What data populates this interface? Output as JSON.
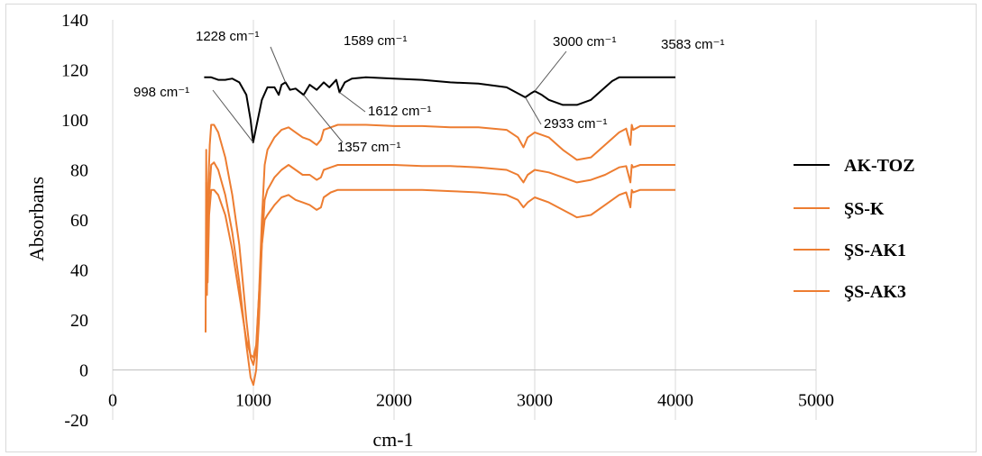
{
  "chart_data": {
    "type": "line",
    "title": "",
    "xlabel": "cm-1",
    "ylabel": "Absorbans",
    "xlim": [
      0,
      5000
    ],
    "ylim": [
      -20,
      140
    ],
    "x_ticks": [
      0,
      1000,
      2000,
      3000,
      4000,
      5000
    ],
    "y_ticks": [
      -20,
      0,
      20,
      40,
      60,
      80,
      100,
      120,
      140
    ],
    "x_tick_labels": [
      "0",
      "1000",
      "2000",
      "3000",
      "4000",
      "5000"
    ],
    "y_tick_labels": [
      "-20",
      "0",
      "20",
      "40",
      "60",
      "80",
      "100",
      "120",
      "140"
    ],
    "grid": "vertical",
    "legend_position": "right",
    "series": [
      {
        "name": "AK-TOZ",
        "color": "#000000",
        "x": [
          650,
          700,
          750,
          800,
          850,
          900,
          950,
          980,
          998,
          1020,
          1060,
          1100,
          1150,
          1180,
          1200,
          1228,
          1260,
          1300,
          1357,
          1400,
          1450,
          1500,
          1540,
          1589,
          1612,
          1650,
          1700,
          1800,
          2000,
          2200,
          2400,
          2600,
          2800,
          2900,
          2933,
          2970,
          3000,
          3050,
          3100,
          3200,
          3300,
          3400,
          3500,
          3550,
          3583,
          3600,
          3700,
          3800,
          4000
        ],
        "y": [
          117,
          117,
          116,
          116,
          116.5,
          115,
          110,
          100,
          91,
          97,
          108,
          113,
          113,
          110,
          114,
          115,
          112,
          112.5,
          110,
          114,
          112,
          115,
          113,
          116,
          111,
          115,
          116.5,
          117,
          116.5,
          116,
          115,
          114.5,
          113,
          110,
          109,
          110.5,
          111.5,
          110,
          108,
          106,
          106,
          108,
          113,
          115.5,
          116.5,
          117,
          117,
          117,
          117
        ]
      },
      {
        "name": "ŞS-K",
        "color": "#ed7d31",
        "x": [
          660,
          665,
          670,
          680,
          690,
          700,
          720,
          750,
          800,
          850,
          900,
          950,
          980,
          1000,
          1020,
          1040,
          1060,
          1080,
          1100,
          1150,
          1200,
          1250,
          1300,
          1350,
          1400,
          1450,
          1480,
          1500,
          1550,
          1600,
          1700,
          1800,
          2000,
          2200,
          2400,
          2600,
          2800,
          2880,
          2920,
          2950,
          3000,
          3100,
          3200,
          3300,
          3400,
          3500,
          3600,
          3650,
          3680,
          3690,
          3700,
          3750,
          3800,
          4000
        ],
        "y": [
          15,
          88,
          30,
          75,
          90,
          98,
          98,
          95,
          85,
          70,
          50,
          20,
          5,
          2,
          8,
          30,
          60,
          82,
          88,
          93,
          96,
          97,
          95,
          93,
          92,
          90,
          92,
          96,
          97,
          98,
          98,
          98,
          97.5,
          97.5,
          97,
          97,
          96,
          93,
          89,
          93,
          95,
          93,
          88,
          84,
          85,
          90,
          95,
          96.5,
          90,
          98,
          96,
          97.5,
          97.5,
          97.5
        ]
      },
      {
        "name": "ŞS-AK1",
        "color": "#ed7d31",
        "x": [
          665,
          675,
          685,
          700,
          720,
          750,
          800,
          850,
          900,
          950,
          980,
          1000,
          1020,
          1040,
          1060,
          1080,
          1100,
          1150,
          1200,
          1250,
          1300,
          1350,
          1400,
          1450,
          1480,
          1500,
          1550,
          1600,
          1700,
          1800,
          2000,
          2200,
          2400,
          2600,
          2800,
          2880,
          2920,
          2950,
          3000,
          3100,
          3200,
          3300,
          3400,
          3500,
          3600,
          3650,
          3680,
          3690,
          3700,
          3750,
          3800,
          4000
        ],
        "y": [
          75,
          40,
          70,
          82,
          83,
          80,
          70,
          55,
          35,
          10,
          -3,
          -6,
          0,
          20,
          50,
          68,
          72,
          77,
          80,
          82,
          80,
          78,
          78,
          76,
          77,
          80,
          81,
          82,
          82,
          82,
          82,
          81.5,
          81.5,
          81,
          80,
          78,
          75,
          78,
          80,
          79,
          77,
          75,
          76,
          78,
          81,
          81.5,
          75,
          82,
          81,
          82,
          82,
          82
        ]
      },
      {
        "name": "ŞS-AK3",
        "color": "#ed7d31",
        "x": [
          665,
          675,
          685,
          700,
          720,
          750,
          800,
          850,
          900,
          950,
          980,
          1000,
          1020,
          1040,
          1060,
          1080,
          1100,
          1150,
          1200,
          1250,
          1300,
          1350,
          1400,
          1450,
          1480,
          1500,
          1550,
          1600,
          1700,
          1800,
          2000,
          2200,
          2400,
          2600,
          2800,
          2880,
          2920,
          2950,
          3000,
          3100,
          3200,
          3300,
          3400,
          3500,
          3600,
          3650,
          3680,
          3690,
          3700,
          3750,
          3800,
          4000
        ],
        "y": [
          68,
          35,
          62,
          72,
          72,
          70,
          62,
          48,
          30,
          12,
          6,
          5,
          10,
          30,
          50,
          60,
          62,
          66,
          69,
          70,
          68,
          67,
          66,
          64,
          65,
          69,
          71,
          72,
          72,
          72,
          72,
          72,
          71.5,
          71,
          70,
          68,
          65,
          67,
          69,
          67,
          64,
          61,
          62,
          66,
          70,
          71,
          65,
          72,
          71,
          72,
          72,
          72
        ]
      }
    ],
    "annotations": [
      {
        "text": "998 cm⁻¹",
        "x": 998,
        "y": 91
      },
      {
        "text": "1228 cm⁻¹",
        "x": 1228,
        "y": 115
      },
      {
        "text": "1357 cm⁻¹",
        "x": 1357,
        "y": 110
      },
      {
        "text": "1589 cm⁻¹",
        "x": 1589,
        "y": 116
      },
      {
        "text": "1612 cm⁻¹",
        "x": 1612,
        "y": 111
      },
      {
        "text": "2933 cm⁻¹",
        "x": 2933,
        "y": 109
      },
      {
        "text": "3000 cm⁻¹",
        "x": 3000,
        "y": 111.5
      },
      {
        "text": "3583 cm⁻¹",
        "x": 3583,
        "y": 116.5
      }
    ]
  }
}
